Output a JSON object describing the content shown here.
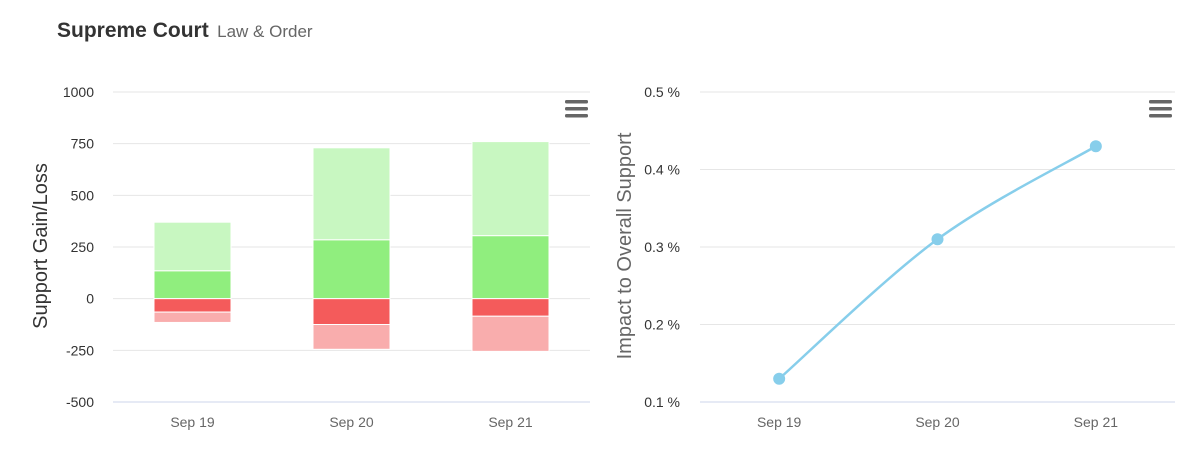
{
  "header": {
    "title": "Supreme Court",
    "subtitle": "Law & Order"
  },
  "chart_data": [
    {
      "type": "bar",
      "stacked": true,
      "categories": [
        "Sep 19",
        "Sep 20",
        "Sep 21"
      ],
      "ylabel": "Support Gain/Loss",
      "ylim": [
        -500,
        1000
      ],
      "yticks": [
        -500,
        -250,
        0,
        250,
        500,
        750,
        1000
      ],
      "grid": true,
      "series": [
        {
          "color": "#90ee7e",
          "values": [
            135,
            285,
            305
          ]
        },
        {
          "color": "#c8f7c1",
          "values": [
            235,
            445,
            455
          ]
        },
        {
          "color": "#f45b5b",
          "values": [
            -65,
            -125,
            -85
          ]
        },
        {
          "color": "#f9adad",
          "values": [
            -50,
            -120,
            -170
          ]
        }
      ]
    },
    {
      "type": "line",
      "categories": [
        "Sep 19",
        "Sep 20",
        "Sep 21"
      ],
      "ylabel": "Impact to Overall Support",
      "ylim": [
        0.1,
        0.5
      ],
      "yticks": [
        0.1,
        0.2,
        0.3,
        0.4,
        0.5
      ],
      "ytick_suffix": " %",
      "grid": true,
      "series": [
        {
          "color": "#87ceeb",
          "values": [
            0.13,
            0.31,
            0.43
          ]
        }
      ]
    }
  ]
}
